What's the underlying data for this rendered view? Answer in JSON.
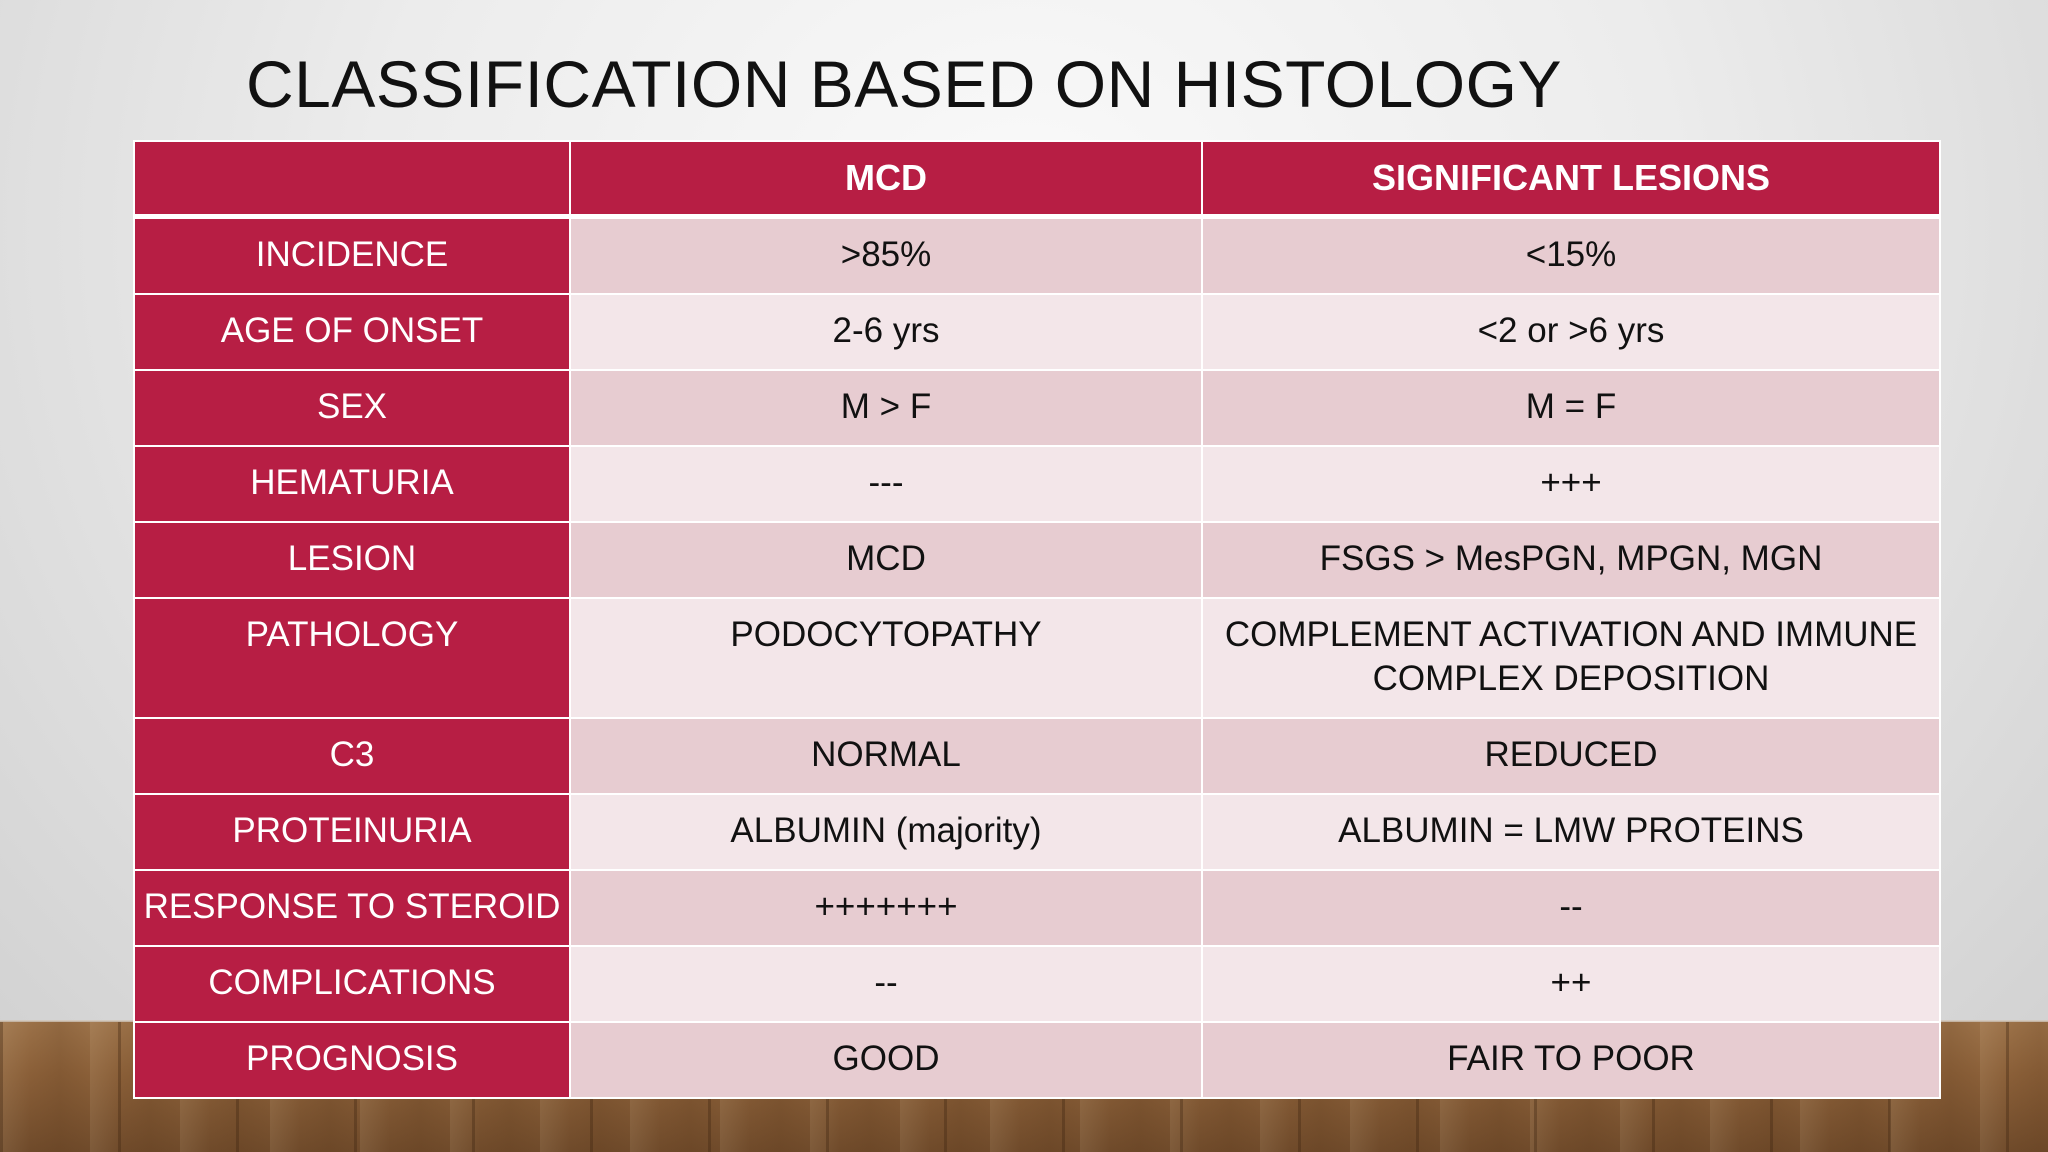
{
  "title": "CLASSIFICATION BASED ON HISTOLOGY",
  "colors": {
    "header": "#b71e44",
    "row_odd": "#e7ccd1",
    "row_even": "#f3e6e9"
  },
  "table": {
    "headers": [
      "",
      "MCD",
      "SIGNIFICANT LESIONS"
    ],
    "rows": [
      {
        "label": "INCIDENCE",
        "mcd": ">85%",
        "sig": "<15%"
      },
      {
        "label": "AGE OF ONSET",
        "mcd": "2-6 yrs",
        "sig": "<2 or >6 yrs"
      },
      {
        "label": "SEX",
        "mcd": "M > F",
        "sig": "M = F"
      },
      {
        "label": "HEMATURIA",
        "mcd": "---",
        "sig": "+++"
      },
      {
        "label": "LESION",
        "mcd": "MCD",
        "sig": "FSGS > MesPGN, MPGN, MGN"
      },
      {
        "label": "PATHOLOGY",
        "mcd": "PODOCYTOPATHY",
        "sig": "COMPLEMENT ACTIVATION AND IMMUNE COMPLEX DEPOSITION"
      },
      {
        "label": "C3",
        "mcd": "NORMAL",
        "sig": "REDUCED"
      },
      {
        "label": "PROTEINURIA",
        "mcd": "ALBUMIN (majority)",
        "sig": "ALBUMIN = LMW PROTEINS"
      },
      {
        "label": "RESPONSE TO STEROID",
        "mcd": "+++++++",
        "sig": "--"
      },
      {
        "label": "COMPLICATIONS",
        "mcd": "--",
        "sig": "++"
      },
      {
        "label": "PROGNOSIS",
        "mcd": "GOOD",
        "sig": "FAIR TO POOR"
      }
    ]
  }
}
